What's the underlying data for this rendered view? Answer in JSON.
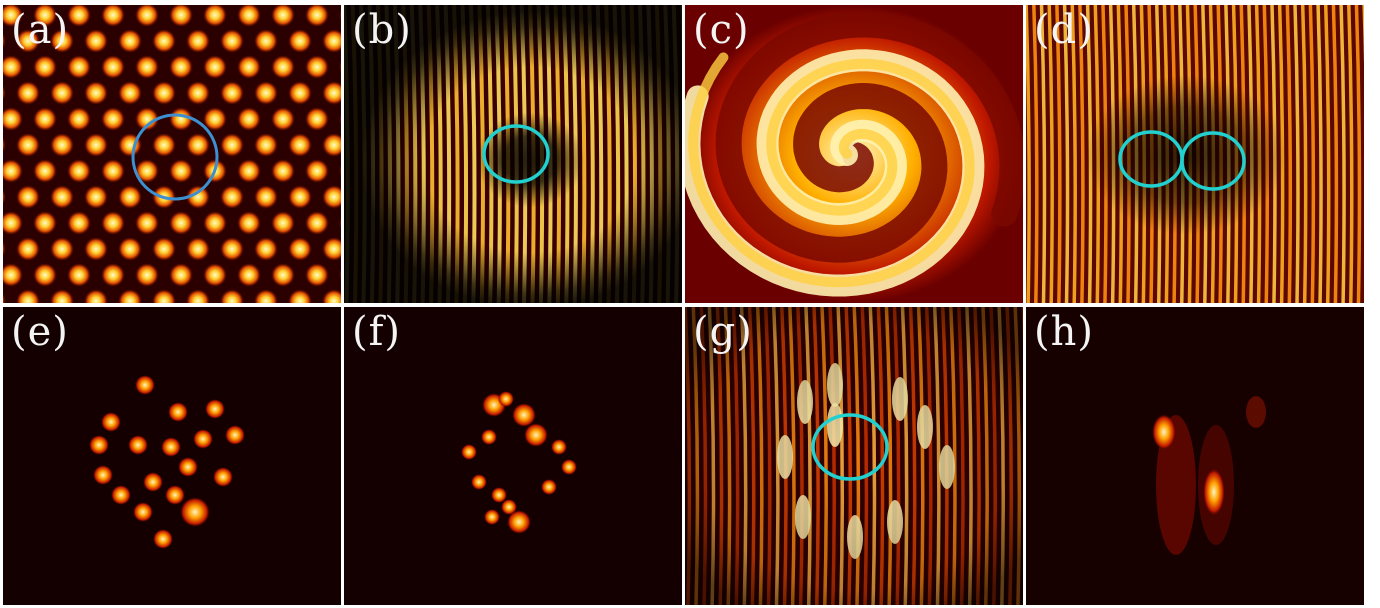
{
  "figure": {
    "panels": [
      {
        "id": "a",
        "label": "(a)"
      },
      {
        "id": "b",
        "label": "(b)"
      },
      {
        "id": "c",
        "label": "(c)"
      },
      {
        "id": "d",
        "label": "(d)"
      },
      {
        "id": "e",
        "label": "(e)"
      },
      {
        "id": "f",
        "label": "(f)"
      },
      {
        "id": "g",
        "label": "(g)"
      },
      {
        "id": "h",
        "label": "(h)"
      }
    ],
    "colors": {
      "background": "#120000",
      "hot_dark": "#5a0000",
      "hot_mid": "#d83000",
      "hot_bright": "#ffb000",
      "hot_peak": "#fff8c0",
      "marker_blue": "#3d8fd0",
      "marker_cyan": "#22d0d0",
      "label_text": "#f4f4f4"
    }
  }
}
